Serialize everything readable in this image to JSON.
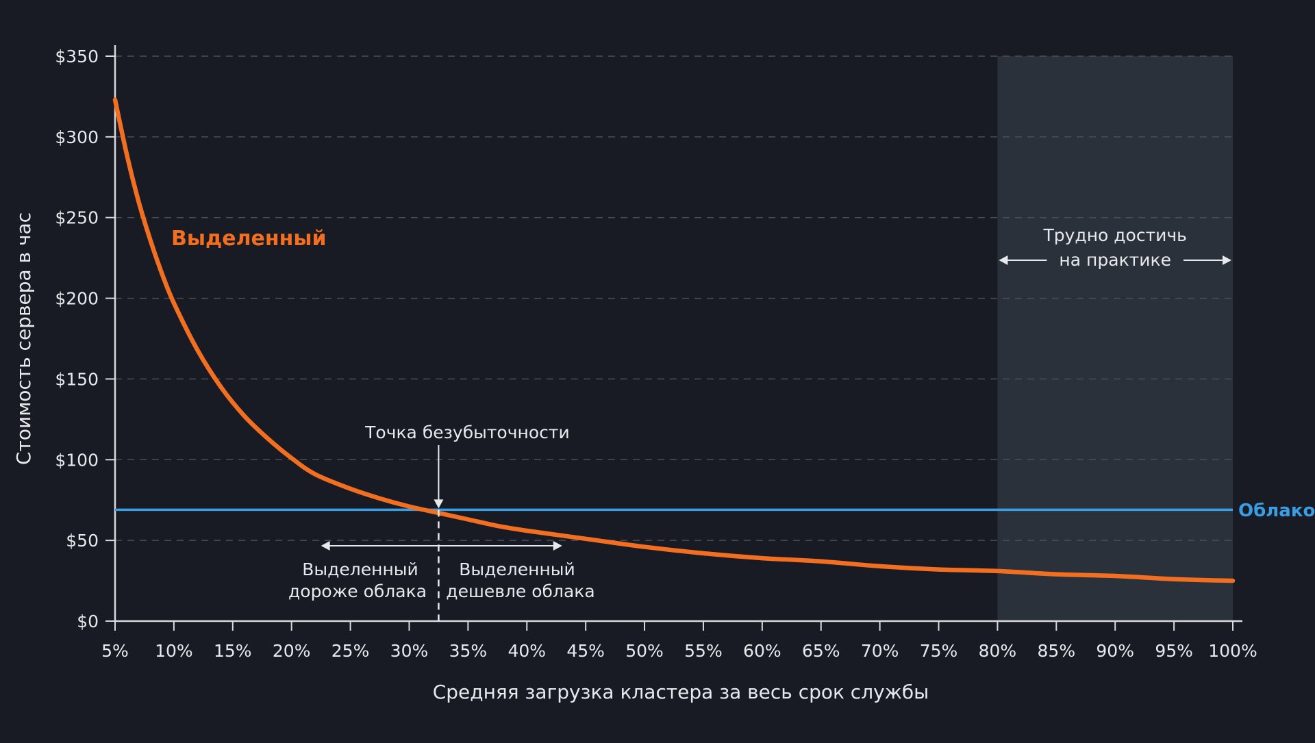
{
  "colors": {
    "background": "#181b24",
    "dedicated": "#f26f21",
    "cloud": "#3a9ee4",
    "axis": "#d7d9de",
    "grid": "#4a4e58",
    "text": "#e8e9ec",
    "hard_region": "#2a313b"
  },
  "chart_data": {
    "type": "line",
    "xlabel": "Средняя загрузка кластера за весь срок службы",
    "ylabel": "Стоимость сервера в час",
    "x_unit": "%",
    "xlim": [
      5,
      100
    ],
    "ylim": [
      0,
      350
    ],
    "x_ticks": [
      5,
      10,
      15,
      20,
      25,
      30,
      35,
      40,
      45,
      50,
      55,
      60,
      65,
      70,
      75,
      80,
      85,
      90,
      95,
      100
    ],
    "x_tick_labels": [
      "5%",
      "10%",
      "15%",
      "20%",
      "25%",
      "30%",
      "35%",
      "40%",
      "45%",
      "50%",
      "55%",
      "60%",
      "65%",
      "70%",
      "75%",
      "80%",
      "85%",
      "90%",
      "95%",
      "100%"
    ],
    "y_ticks": [
      0,
      50,
      100,
      150,
      200,
      250,
      300,
      350
    ],
    "y_tick_labels": [
      "$0",
      "$50",
      "$100",
      "$150",
      "$200",
      "$250",
      "$300",
      "$350"
    ],
    "grid": "horizontal-dashed",
    "series": [
      {
        "name": "Выделенный",
        "x": [
          5,
          6,
          7,
          8,
          9,
          10,
          12,
          14,
          16,
          18,
          20,
          22,
          25,
          27.5,
          30,
          32.5,
          35,
          37.5,
          40,
          45,
          50,
          55,
          60,
          65,
          70,
          75,
          80,
          85,
          90,
          95,
          100
        ],
        "values": [
          323,
          289,
          260,
          236,
          215,
          197,
          168,
          145,
          127,
          113,
          101,
          91,
          82,
          76,
          71,
          67,
          63,
          59,
          56,
          51,
          46,
          42,
          39,
          37,
          34,
          32,
          31,
          29,
          28,
          26,
          25
        ]
      },
      {
        "name": "Облако",
        "x": [
          5,
          100
        ],
        "values": [
          69,
          69
        ]
      }
    ],
    "annotations": {
      "breakeven_x": 32.5,
      "breakeven_label": "Точка безубыточности",
      "left_region_x": [
        22.5,
        32.5
      ],
      "left_region_label": [
        "Выделенный",
        "дороже облака"
      ],
      "right_region_x": [
        32.5,
        43
      ],
      "right_region_label": [
        "Выделенный",
        "дешевле облака"
      ],
      "hard_region_x": [
        80,
        100
      ],
      "hard_region_label": [
        "Трудно достичь",
        "на практике"
      ]
    }
  }
}
